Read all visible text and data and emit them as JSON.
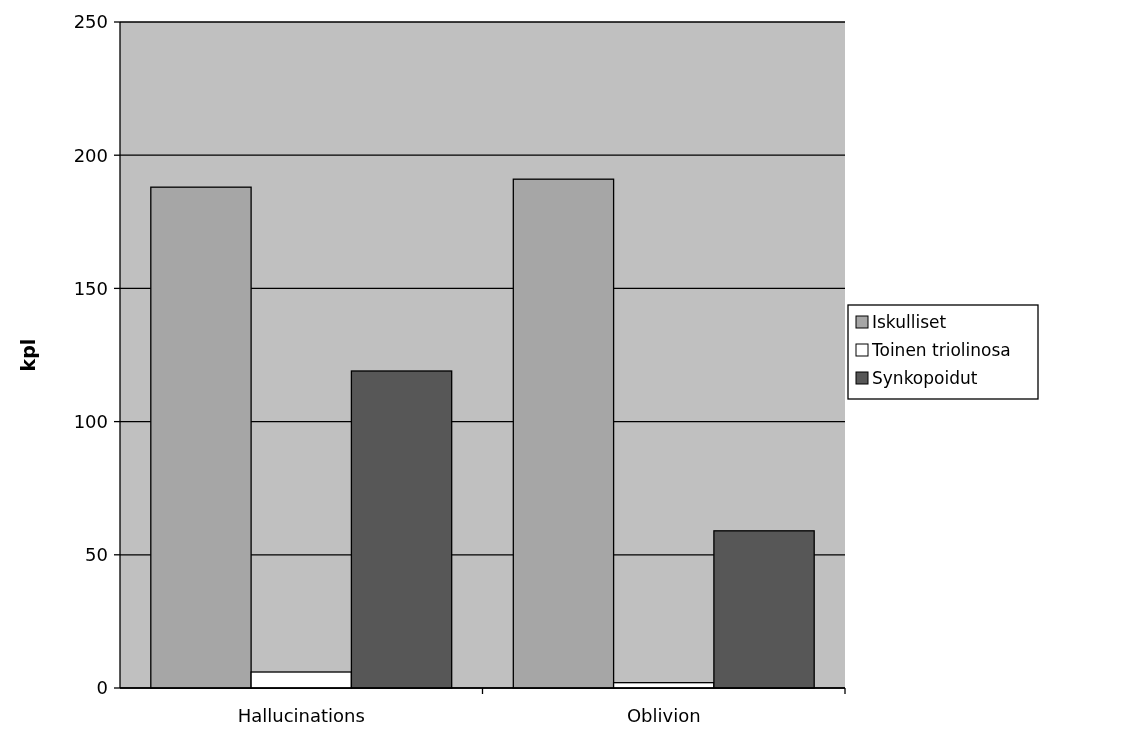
{
  "chart_data": {
    "type": "bar",
    "ylabel": "kpl",
    "categories": [
      "Hallucinations",
      "Oblivion"
    ],
    "series": [
      {
        "name": "Iskulliset",
        "color": "#a6a6a6",
        "values": [
          188,
          191
        ]
      },
      {
        "name": "Toinen triolinosa",
        "color": "#ffffff",
        "values": [
          6,
          2
        ]
      },
      {
        "name": "Synkopoidut",
        "color": "#575757",
        "values": [
          119,
          59
        ]
      }
    ],
    "ylim": [
      0,
      250
    ],
    "yticks": [
      0,
      50,
      100,
      150,
      200,
      250
    ],
    "grid": "y",
    "legend": "right"
  }
}
